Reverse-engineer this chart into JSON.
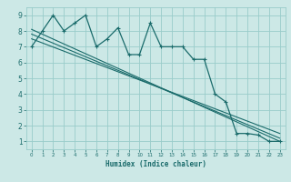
{
  "xlabel": "Humidex (Indice chaleur)",
  "bg_color": "#cce8e6",
  "grid_color": "#99ccca",
  "line_color": "#1a6b6b",
  "xlim": [
    -0.5,
    23.5
  ],
  "ylim": [
    0.5,
    9.5
  ],
  "xticks": [
    0,
    1,
    2,
    3,
    4,
    5,
    6,
    7,
    8,
    9,
    10,
    11,
    12,
    13,
    14,
    15,
    16,
    17,
    18,
    19,
    20,
    21,
    22,
    23
  ],
  "yticks": [
    1,
    2,
    3,
    4,
    5,
    6,
    7,
    8,
    9
  ],
  "series_main": {
    "x": [
      0,
      1,
      2,
      3,
      4,
      5,
      6,
      7,
      8,
      9,
      10,
      11,
      12,
      13,
      14,
      15,
      16,
      17,
      18,
      19,
      20,
      21,
      22,
      23
    ],
    "y": [
      7.0,
      8.0,
      9.0,
      8.0,
      8.5,
      9.0,
      7.0,
      7.5,
      8.2,
      6.5,
      6.5,
      8.5,
      7.0,
      7.0,
      7.0,
      6.2,
      6.2,
      4.0,
      3.5,
      1.5,
      1.5,
      1.4,
      1.0,
      1.0
    ]
  },
  "trend_lines": [
    {
      "x": [
        0,
        23
      ],
      "y": [
        8.1,
        1.0
      ]
    },
    {
      "x": [
        0,
        23
      ],
      "y": [
        7.8,
        1.2
      ]
    },
    {
      "x": [
        0,
        23
      ],
      "y": [
        7.5,
        1.5
      ]
    }
  ]
}
